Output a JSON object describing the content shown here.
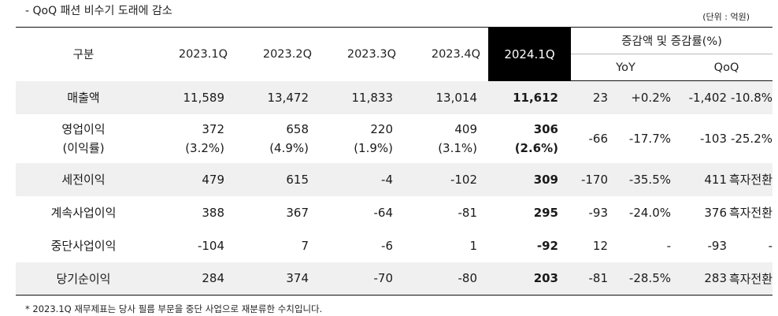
{
  "header_note": "- QoQ 패션 비수기 도래에 감소",
  "unit": "(단위 : 억원)",
  "columns": {
    "label": "구분",
    "quarters": [
      "2023.1Q",
      "2023.2Q",
      "2023.3Q",
      "2023.4Q"
    ],
    "current": "2024.1Q",
    "change_title": "증감액 및 증감률(%)",
    "yoy": "YoY",
    "qoq": "QoQ"
  },
  "rows": [
    {
      "label": "매출액",
      "q": [
        "11,589",
        "13,472",
        "11,833",
        "13,014"
      ],
      "current": "11,612",
      "yoy_val": "23",
      "yoy_pct": "+0.2%",
      "qoq_val": "-1,402",
      "qoq_pct": "-10.8%"
    },
    {
      "label": "영업이익",
      "label2": "(이익률)",
      "q": [
        "372",
        "658",
        "220",
        "409"
      ],
      "q2": [
        "(3.2%)",
        "(4.9%)",
        "(1.9%)",
        "(3.1%)"
      ],
      "current": "306",
      "current2": "(2.6%)",
      "yoy_val": "-66",
      "yoy_pct": "-17.7%",
      "qoq_val": "-103",
      "qoq_pct": "-25.2%"
    },
    {
      "label": "세전이익",
      "q": [
        "479",
        "615",
        "-4",
        "-102"
      ],
      "current": "309",
      "yoy_val": "-170",
      "yoy_pct": "-35.5%",
      "qoq_val": "411",
      "qoq_pct": "흑자전환"
    },
    {
      "label": "계속사업이익",
      "q": [
        "388",
        "367",
        "-64",
        "-81"
      ],
      "current": "295",
      "yoy_val": "-93",
      "yoy_pct": "-24.0%",
      "qoq_val": "376",
      "qoq_pct": "흑자전환"
    },
    {
      "label": "중단사업이익",
      "q": [
        "-104",
        "7",
        "-6",
        "1"
      ],
      "current": "-92",
      "yoy_val": "12",
      "yoy_pct": "-",
      "qoq_val": "-93",
      "qoq_pct": "-"
    },
    {
      "label": "당기순이익",
      "q": [
        "284",
        "374",
        "-70",
        "-80"
      ],
      "current": "203",
      "yoy_val": "-81",
      "yoy_pct": "-28.5%",
      "qoq_val": "283",
      "qoq_pct": "흑자전환"
    }
  ],
  "footnote": "* 2023.1Q 재무제표는 당사 필름 부문을 중단 사업으로 재분류한 수치입니다.",
  "colors": {
    "highlight_header_bg": "#000000",
    "shaded_row_bg": "#f0f0f0"
  }
}
